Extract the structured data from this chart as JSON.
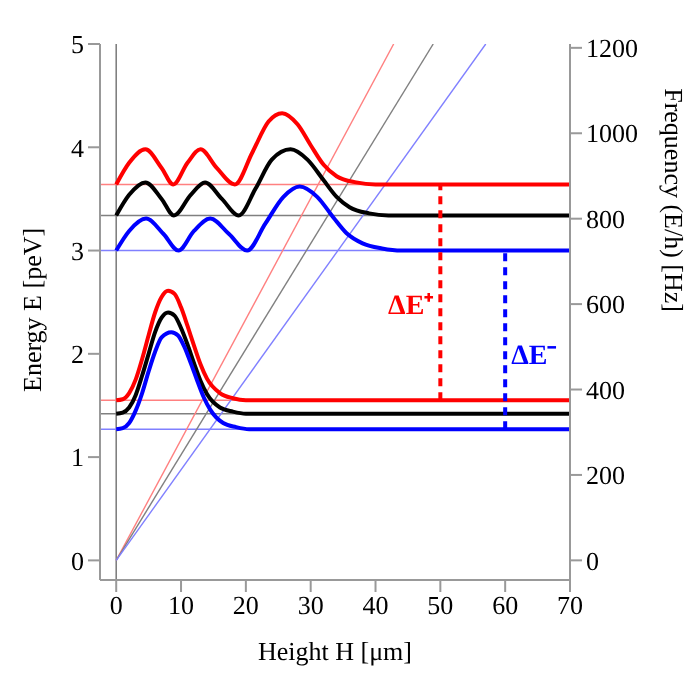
{
  "chart_data": {
    "type": "line",
    "xlabel": "Height H [μm]",
    "ylabel": "Energy E [peV]",
    "y2label": "Frequency (E/h) [Hz]",
    "xlim": [
      -2.5,
      70
    ],
    "xticks": [
      0,
      10,
      20,
      30,
      40,
      50,
      60,
      70
    ],
    "ylim": [
      -0.19,
      5
    ],
    "yticks": [
      0,
      1,
      2,
      3,
      4,
      5
    ],
    "y2lim": [
      -46,
      1209
    ],
    "y2ticks": [
      0,
      200,
      400,
      600,
      800,
      1000,
      1200
    ],
    "legend": false,
    "marker": "none",
    "line_style": "solid",
    "series": [
      {
        "color": "#ff8080",
        "x": [
          0,
          42.8
        ],
        "values": [
          0,
          5
        ]
      },
      {
        "color": "#808080",
        "x": [
          0,
          48.9
        ],
        "values": [
          0,
          5
        ]
      },
      {
        "color": "#8080ff",
        "x": [
          0,
          57
        ],
        "values": [
          0,
          5
        ]
      },
      {
        "color": "#ff0000",
        "x": [
          0,
          1,
          2,
          3,
          4,
          5,
          6,
          7,
          8,
          9,
          10,
          11,
          12,
          13,
          14,
          16,
          18,
          20,
          22,
          25,
          30,
          70
        ],
        "values": [
          1.55,
          1.56,
          1.62,
          1.75,
          1.95,
          2.18,
          2.4,
          2.55,
          2.61,
          2.58,
          2.45,
          2.27,
          2.08,
          1.9,
          1.76,
          1.62,
          1.57,
          1.55,
          1.55,
          1.55,
          1.55,
          1.55
        ]
      },
      {
        "color": "#000000",
        "x": [
          0,
          1,
          2,
          3,
          4,
          5,
          6,
          7,
          8,
          9,
          10,
          11,
          12,
          13,
          14,
          16,
          18,
          20,
          22,
          25,
          30,
          70
        ],
        "values": [
          1.42,
          1.43,
          1.48,
          1.6,
          1.79,
          2.0,
          2.21,
          2.35,
          2.4,
          2.37,
          2.25,
          2.09,
          1.91,
          1.74,
          1.61,
          1.48,
          1.44,
          1.42,
          1.42,
          1.42,
          1.42,
          1.42
        ]
      },
      {
        "color": "#0000ff",
        "x": [
          0,
          1,
          2,
          3,
          4,
          5,
          6,
          7,
          8.5,
          9.5,
          10.5,
          11.5,
          12.5,
          13.5,
          14.5,
          16.5,
          18.5,
          20.5,
          22.5,
          25.5,
          30,
          70
        ],
        "values": [
          1.27,
          1.28,
          1.33,
          1.45,
          1.62,
          1.83,
          2.02,
          2.16,
          2.21,
          2.18,
          2.07,
          1.91,
          1.74,
          1.58,
          1.46,
          1.33,
          1.29,
          1.27,
          1.27,
          1.27,
          1.27,
          1.27
        ]
      },
      {
        "color": "#ff0000",
        "x": [
          0,
          2,
          4.5,
          7,
          8.8,
          11,
          13,
          15.5,
          18.3,
          21,
          23.5,
          25.6,
          28,
          30,
          32,
          34,
          37,
          40,
          70
        ],
        "values": [
          3.64,
          3.85,
          3.98,
          3.8,
          3.64,
          3.85,
          3.98,
          3.8,
          3.64,
          3.95,
          4.25,
          4.33,
          4.22,
          4.02,
          3.83,
          3.72,
          3.66,
          3.64,
          3.64
        ]
      },
      {
        "color": "#000000",
        "x": [
          0,
          2,
          4.5,
          7,
          8.9,
          11.5,
          13.7,
          16.3,
          18.9,
          21.5,
          24,
          26.9,
          29.5,
          32,
          34,
          36,
          39,
          42,
          70
        ],
        "values": [
          3.34,
          3.54,
          3.66,
          3.5,
          3.34,
          3.54,
          3.66,
          3.5,
          3.34,
          3.6,
          3.88,
          3.98,
          3.88,
          3.68,
          3.52,
          3.42,
          3.36,
          3.34,
          3.34
        ]
      },
      {
        "color": "#0000ff",
        "x": [
          0,
          2,
          4.6,
          7.3,
          9.6,
          12,
          14.5,
          17.4,
          20.2,
          23,
          25.8,
          28.3,
          31,
          33.5,
          35.5,
          38,
          41,
          44,
          70
        ],
        "values": [
          3.0,
          3.19,
          3.31,
          3.16,
          3.0,
          3.19,
          3.31,
          3.16,
          3.0,
          3.26,
          3.52,
          3.62,
          3.52,
          3.32,
          3.17,
          3.07,
          3.02,
          3.0,
          3.0
        ]
      },
      {
        "color": "#ff0000",
        "line_style": "dashed",
        "x": [
          50,
          50
        ],
        "values": [
          1.55,
          3.64
        ]
      },
      {
        "color": "#0000ff",
        "line_style": "dashed",
        "x": [
          60,
          60
        ],
        "values": [
          1.27,
          3.0
        ]
      }
    ],
    "ref_lines": [
      {
        "axis": "x",
        "value": 0,
        "color": "#808080"
      },
      {
        "axis": "y",
        "value": 3.64,
        "color": "#ff8080"
      },
      {
        "axis": "y",
        "value": 3.34,
        "color": "#808080"
      },
      {
        "axis": "y",
        "value": 3.0,
        "color": "#8080ff"
      },
      {
        "axis": "y",
        "value": 1.55,
        "color": "#ff8080"
      },
      {
        "axis": "y",
        "value": 1.42,
        "color": "#808080"
      },
      {
        "axis": "y",
        "value": 1.27,
        "color": "#8080ff"
      }
    ],
    "annotations": [
      {
        "text": "ΔE⁺",
        "x": 50,
        "y": 2.48
      },
      {
        "text": "ΔE⁻",
        "x": 60,
        "y": 2.0
      }
    ]
  }
}
